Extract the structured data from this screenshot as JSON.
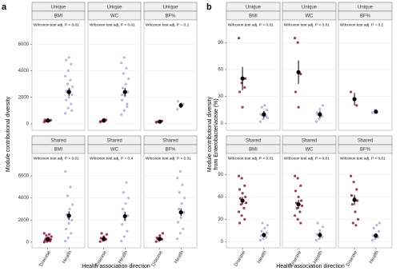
{
  "chart_data": [
    {
      "type": "strip",
      "label": "a",
      "y_label": [
        "Module contributional diversity"
      ],
      "x_label": "Health association direction",
      "categories": [
        "Disease",
        "Health"
      ],
      "ylim": [
        -300,
        6800
      ],
      "yticks": [
        0,
        2000,
        4000,
        6000
      ],
      "colors": {
        "Disease": "#8b1a4a",
        "Health": "#a9acd6"
      },
      "facets": [
        {
          "group": "Unique",
          "measure": "BMI",
          "test": "Wilcoxon test  adj. P < 0.01",
          "series": [
            {
              "name": "Disease",
              "values": [
                150,
                200,
                250,
                300,
                350,
                280,
                220
              ],
              "mean": 250,
              "error": 60
            },
            {
              "name": "Health",
              "values": [
                800,
                1200,
                1500,
                1800,
                2000,
                2200,
                2400,
                2600,
                2800,
                3000,
                3300,
                3600,
                4000,
                4500,
                4800,
                5000,
                1000,
                2500
              ],
              "mean": 2400,
              "error": 300
            }
          ]
        },
        {
          "group": "Unique",
          "measure": "WC",
          "test": "Wilcoxon test  adj. P < 0.01",
          "series": [
            {
              "name": "Disease",
              "values": [
                150,
                250,
                300,
                200,
                350
              ],
              "mean": 250,
              "error": 80
            },
            {
              "name": "Health",
              "values": [
                700,
                1000,
                1500,
                1800,
                2100,
                2400,
                2700,
                3000,
                3400,
                3800,
                4200,
                4600,
                5000,
                1300,
                2200
              ],
              "mean": 2400,
              "error": 300
            }
          ]
        },
        {
          "group": "Unique",
          "measure": "BF%",
          "test": "Wilcoxon test  adj. P = 0.2",
          "series": [
            {
              "name": "Disease",
              "values": [
                120,
                180,
                220,
                160
              ],
              "mean": 170,
              "error": 40
            },
            {
              "name": "Health",
              "values": [
                1100,
                1300,
                1500,
                1700
              ],
              "mean": 1400,
              "error": 200
            }
          ]
        },
        {
          "group": "Shared",
          "measure": "BMI",
          "test": "Wilcoxon test  adj. P < 0.01",
          "series": [
            {
              "name": "Disease",
              "values": [
                0,
                50,
                100,
                150,
                200,
                250,
                300,
                400,
                500,
                600,
                700,
                800,
                350,
                180
              ],
              "mean": 250,
              "error": 80
            },
            {
              "name": "Health",
              "values": [
                100,
                400,
                800,
                1200,
                1700,
                2000,
                2500,
                3000,
                3400,
                4200,
                5000,
                6400,
                2200
              ],
              "mean": 2400,
              "error": 400
            }
          ]
        },
        {
          "group": "Shared",
          "measure": "WC",
          "test": "Wilcoxon test  adj. P = 0.4",
          "series": [
            {
              "name": "Disease",
              "values": [
                50,
                150,
                250,
                350,
                500,
                700,
                800,
                200
              ],
              "mean": 300,
              "error": 150
            },
            {
              "name": "Health",
              "values": [
                100,
                500,
                1000,
                1600,
                2000,
                2400,
                3000,
                3500,
                4000,
                4500,
                5400
              ],
              "mean": 2350,
              "error": 400
            }
          ]
        },
        {
          "group": "Shared",
          "measure": "BF%",
          "test": "Wilcoxon test  adj. P < 0.01",
          "series": [
            {
              "name": "Disease",
              "values": [
                50,
                150,
                250,
                400,
                600,
                800,
                300
              ],
              "mean": 300,
              "error": 120
            },
            {
              "name": "Health",
              "values": [
                300,
                800,
                1200,
                1800,
                2200,
                2700,
                3000,
                3500,
                4000,
                4500,
                5200,
                5800,
                6400
              ],
              "mean": 2700,
              "error": 350
            }
          ]
        }
      ]
    },
    {
      "type": "strip",
      "label": "b",
      "y_label": [
        "Module contributional diversity",
        "from Enterobacteriaceae (%)"
      ],
      "x_label": "Health association direction",
      "categories": [
        "Disease",
        "Health"
      ],
      "ylim": [
        -5,
        100
      ],
      "yticks": [
        0,
        30,
        60,
        90
      ],
      "colors": {
        "Disease": "#8b1a4a",
        "Health": "#a9acd6"
      },
      "facets": [
        {
          "group": "Unique",
          "measure": "BMI",
          "test": "Wilcoxon test  adj. P < 0.01",
          "series": [
            {
              "name": "Disease",
              "values": [
                95,
                45,
                40,
                35,
                18,
                50
              ],
              "mean": 50,
              "error": 13
            },
            {
              "name": "Health",
              "values": [
                2,
                5,
                8,
                10,
                12,
                15,
                18,
                20,
                6,
                9
              ],
              "mean": 10,
              "error": 4
            }
          ]
        },
        {
          "group": "Unique",
          "measure": "WC",
          "test": "Wilcoxon test  adj. P < 0.01",
          "series": [
            {
              "name": "Disease",
              "values": [
                95,
                90,
                55,
                35,
                18
              ],
              "mean": 57,
              "error": 13
            },
            {
              "name": "Health",
              "values": [
                2,
                5,
                8,
                12,
                16,
                20,
                10
              ],
              "mean": 10,
              "error": 4
            }
          ]
        },
        {
          "group": "Unique",
          "measure": "BF%",
          "test": "Wilcoxon test  adj. P = 0.2",
          "series": [
            {
              "name": "Disease",
              "values": [
                35,
                28,
                20
              ],
              "mean": 27,
              "error": 7
            },
            {
              "name": "Health",
              "values": [
                12,
                15
              ],
              "mean": 13,
              "error": 2
            }
          ]
        },
        {
          "group": "Shared",
          "measure": "BMI",
          "test": "Wilcoxon test  adj. P < 0.01",
          "series": [
            {
              "name": "Disease",
              "values": [
                88,
                85,
                75,
                70,
                65,
                60,
                58,
                55,
                52,
                50,
                45,
                40,
                35,
                30,
                25
              ],
              "mean": 55,
              "error": 5
            },
            {
              "name": "Health",
              "values": [
                2,
                4,
                6,
                8,
                10,
                12,
                14,
                18,
                22,
                25
              ],
              "mean": 9,
              "error": 3
            }
          ]
        },
        {
          "group": "Shared",
          "measure": "WC",
          "test": "Wilcoxon test  adj. P < 0.01",
          "series": [
            {
              "name": "Disease",
              "values": [
                88,
                85,
                75,
                68,
                60,
                55,
                52,
                50,
                48,
                45,
                40,
                35,
                30,
                25
              ],
              "mean": 50,
              "error": 6
            },
            {
              "name": "Health",
              "values": [
                2,
                4,
                6,
                10,
                15,
                20,
                25
              ],
              "mean": 9,
              "error": 4
            }
          ]
        },
        {
          "group": "Shared",
          "measure": "BF%",
          "test": "Wilcoxon test  adj. P < 0.01",
          "series": [
            {
              "name": "Disease",
              "values": [
                88,
                80,
                70,
                62,
                58,
                55,
                50,
                40,
                30,
                25,
                22
              ],
              "mean": 56,
              "error": 7
            },
            {
              "name": "Health",
              "values": [
                2,
                4,
                6,
                8,
                10,
                14,
                18,
                22,
                25
              ],
              "mean": 8,
              "error": 3
            }
          ]
        }
      ]
    }
  ]
}
